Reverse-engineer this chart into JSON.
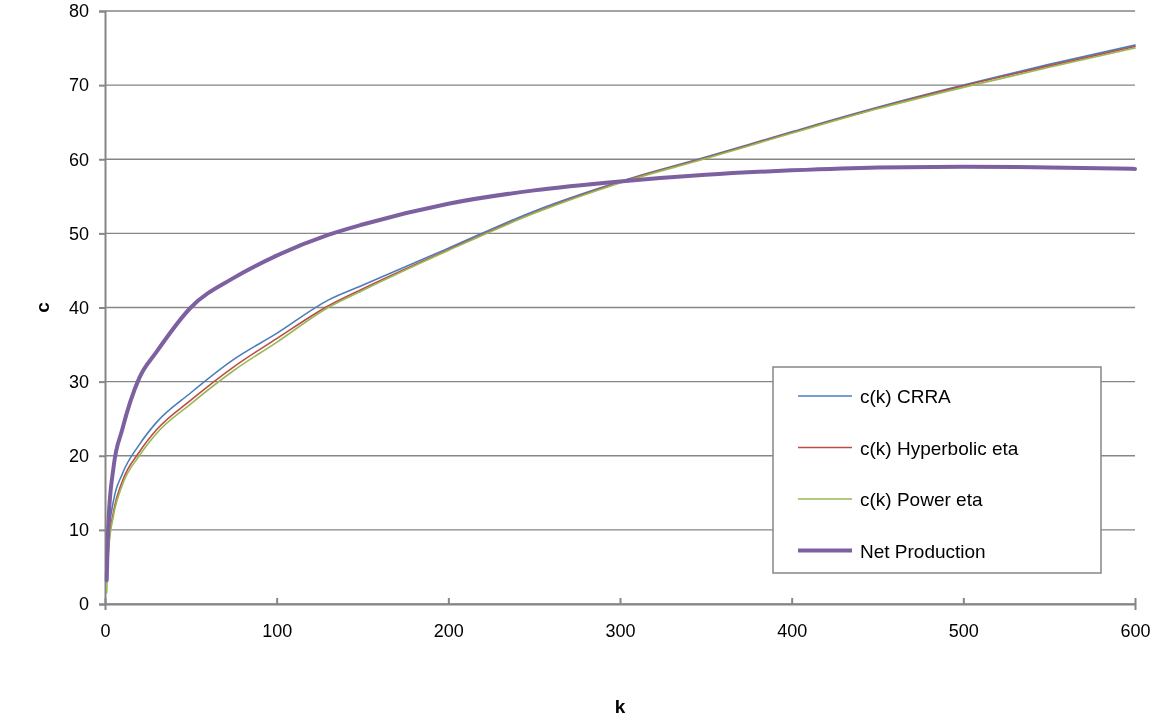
{
  "chart_data": {
    "type": "line",
    "xlabel": "k",
    "ylabel": "c",
    "x": [
      1,
      2,
      5,
      10,
      20,
      30,
      50,
      75,
      100,
      130,
      150,
      200,
      250,
      300,
      350,
      400,
      450,
      500,
      550,
      600
    ],
    "xlim": [
      0,
      600
    ],
    "xticks": [
      0,
      100,
      200,
      300,
      400,
      500,
      600
    ],
    "ylim": [
      0,
      80
    ],
    "yticks": [
      0,
      10,
      20,
      30,
      40,
      50,
      60,
      70,
      80
    ],
    "grid": "y",
    "legend": "right",
    "marker": "none",
    "line_style": "solid",
    "series": [
      {
        "name": "c(k) CRRA",
        "color": "#4a7ebb",
        "values": [
          5.5,
          9,
          14,
          17.5,
          21.5,
          24.5,
          28.5,
          33,
          36.5,
          41,
          43,
          48,
          53,
          57,
          60.3,
          63.7,
          67,
          70,
          72.8,
          75.4
        ]
      },
      {
        "name": "c(k) Hyperbolic eta",
        "color": "#be4b48",
        "values": [
          3,
          7.5,
          12.5,
          16.5,
          20.5,
          23.5,
          27.5,
          32,
          35.8,
          40.2,
          42.5,
          47.8,
          52.8,
          56.9,
          60.2,
          63.6,
          66.9,
          69.9,
          72.6,
          75.2
        ]
      },
      {
        "name": "c(k) Power eta",
        "color": "#98b954",
        "values": [
          1.5,
          7,
          12,
          16,
          20,
          23,
          27,
          31.5,
          35.3,
          40,
          42.3,
          47.7,
          52.7,
          56.8,
          60.1,
          63.5,
          66.8,
          69.7,
          72.4,
          75
        ]
      },
      {
        "name": "Net Production",
        "color": "#7d60a0",
        "values": [
          3.2,
          11,
          18.5,
          23.5,
          30.5,
          34,
          40,
          44,
          47,
          49.8,
          51.2,
          54,
          55.8,
          57,
          57.9,
          58.5,
          58.9,
          59,
          58.9,
          58.7
        ]
      }
    ]
  }
}
